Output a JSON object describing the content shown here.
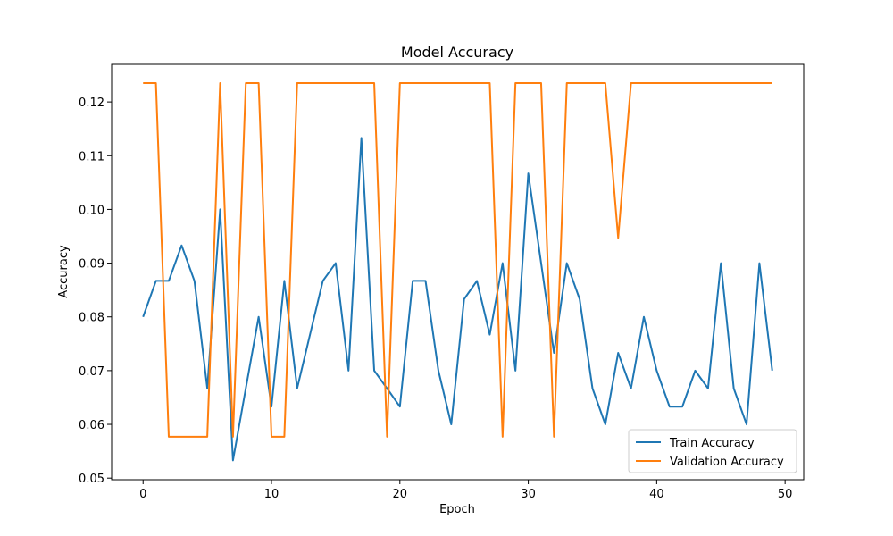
{
  "chart_data": {
    "type": "line",
    "title": "Model Accuracy",
    "xlabel": "Epoch",
    "ylabel": "Accuracy",
    "xlim": [
      -2.45,
      51.45
    ],
    "ylim": [
      0.0497,
      0.127
    ],
    "xticks": [
      0,
      10,
      20,
      30,
      40,
      50
    ],
    "yticks": [
      0.05,
      0.06,
      0.07,
      0.08,
      0.09,
      0.1,
      0.11,
      0.12
    ],
    "ytick_labels": [
      "0.05",
      "0.06",
      "0.07",
      "0.08",
      "0.09",
      "0.10",
      "0.11",
      "0.12"
    ],
    "grid": false,
    "legend_position": "lower-right",
    "x": [
      0,
      1,
      2,
      3,
      4,
      5,
      6,
      7,
      8,
      9,
      10,
      11,
      12,
      13,
      14,
      15,
      16,
      17,
      18,
      19,
      20,
      21,
      22,
      23,
      24,
      25,
      26,
      27,
      28,
      29,
      30,
      31,
      32,
      33,
      34,
      35,
      36,
      37,
      38,
      39,
      40,
      41,
      42,
      43,
      44,
      45,
      46,
      47,
      48,
      49
    ],
    "series": [
      {
        "name": "Train Accuracy",
        "color": "#1f77b4",
        "values": [
          0.08,
          0.0867,
          0.0867,
          0.0933,
          0.0867,
          0.0667,
          0.1,
          0.0533,
          0.0667,
          0.08,
          0.0633,
          0.0867,
          0.0667,
          0.0767,
          0.0867,
          0.09,
          0.07,
          0.1133,
          0.07,
          0.0667,
          0.0633,
          0.0867,
          0.0867,
          0.07,
          0.06,
          0.0833,
          0.0867,
          0.0767,
          0.09,
          0.07,
          0.1067,
          0.09,
          0.0733,
          0.09,
          0.0833,
          0.0667,
          0.06,
          0.0733,
          0.0667,
          0.08,
          0.07,
          0.0633,
          0.0633,
          0.07,
          0.0667,
          0.09,
          0.0667,
          0.06,
          0.09,
          0.07
        ]
      },
      {
        "name": "Validation Accuracy",
        "color": "#ff7f0e",
        "values": [
          0.1235,
          0.1235,
          0.0577,
          0.0577,
          0.0577,
          0.0577,
          0.1235,
          0.0577,
          0.1235,
          0.1235,
          0.0577,
          0.0577,
          0.1235,
          0.1235,
          0.1235,
          0.1235,
          0.1235,
          0.1235,
          0.1235,
          0.0577,
          0.1235,
          0.1235,
          0.1235,
          0.1235,
          0.1235,
          0.1235,
          0.1235,
          0.1235,
          0.0577,
          0.1235,
          0.1235,
          0.1235,
          0.0577,
          0.1235,
          0.1235,
          0.1235,
          0.1235,
          0.0947,
          0.1235,
          0.1235,
          0.1235,
          0.1235,
          0.1235,
          0.1235,
          0.1235,
          0.1235,
          0.1235,
          0.1235,
          0.1235,
          0.1235
        ]
      }
    ]
  }
}
